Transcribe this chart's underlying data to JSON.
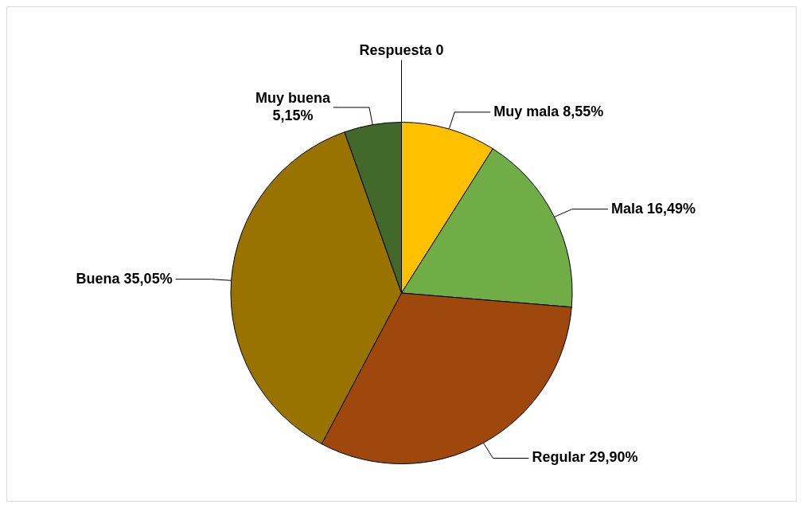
{
  "chart_data": {
    "type": "pie",
    "categories": [
      "Respuesta",
      "Muy mala",
      "Mala",
      "Regular",
      "Buena",
      "Muy buena"
    ],
    "values": [
      0,
      8.55,
      16.49,
      29.9,
      35.05,
      5.15
    ],
    "value_labels": [
      "0",
      "8,55%",
      "16,49%",
      "29,90%",
      "35,05%",
      "5,15%"
    ],
    "colors": [
      "#4472c4",
      "#ffc000",
      "#70ad47",
      "#9e480e",
      "#997300",
      "#43682b"
    ],
    "legend": false
  }
}
